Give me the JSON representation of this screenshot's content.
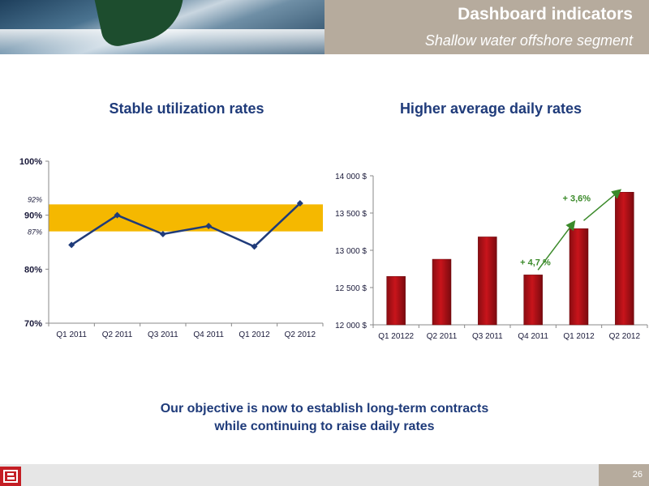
{
  "header": {
    "title": "Dashboard indicators",
    "subtitle": "Shallow water offshore segment"
  },
  "chart_data": [
    {
      "type": "line",
      "title": "Stable utilization rates",
      "categories": [
        "Q1 2011",
        "Q2 2011",
        "Q3 2011",
        "Q4 2011",
        "Q1 2012",
        "Q2 2012"
      ],
      "values": [
        84.5,
        90.0,
        86.5,
        88.0,
        84.2,
        92.2
      ],
      "yticks": [
        "70%",
        "80%",
        "90%",
        "100%"
      ],
      "ylim": [
        70,
        100
      ],
      "band": {
        "low": 87,
        "high": 92,
        "low_label": "87%",
        "high_label": "92%",
        "color": "#f5b800"
      },
      "line_color": "#1f3b7a"
    },
    {
      "type": "bar",
      "title": "Higher average daily rates",
      "categories": [
        "Q1 20122",
        "Q2 2011",
        "Q3 2011",
        "Q4 2011",
        "Q1 2012",
        "Q2 2012"
      ],
      "values": [
        12650,
        12880,
        13180,
        12670,
        13290,
        13780
      ],
      "yticks": [
        "12 000 $",
        "12 500 $",
        "13 000 $",
        "13 500 $",
        "14 000 $"
      ],
      "ylim": [
        12000,
        14000
      ],
      "bar_color": "#c8141b",
      "annotations": [
        {
          "text": "+ 4,7 %",
          "color": "#3b8a2a"
        },
        {
          "text": "+ 3,6%",
          "color": "#3b8a2a"
        }
      ]
    }
  ],
  "objective": {
    "line1": "Our objective is now to establish long-term contracts",
    "line2": "while continuing to raise daily rates"
  },
  "footer": {
    "logo_letter": "B",
    "page_number": "26"
  }
}
